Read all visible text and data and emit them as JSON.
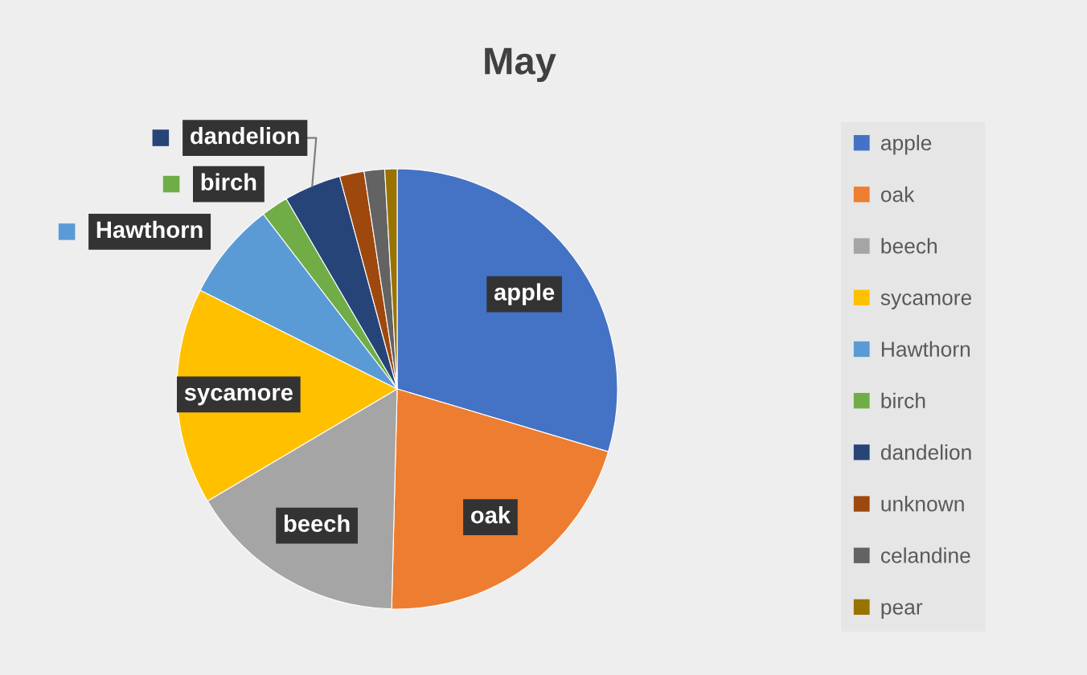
{
  "chart_data": {
    "type": "pie",
    "title": "May",
    "categories": [
      "apple",
      "oak",
      "beech",
      "sycamore",
      "Hawthorn",
      "birch",
      "dandelion",
      "unknown",
      "celandine",
      "pear"
    ],
    "values": [
      29.6,
      20.8,
      16.1,
      15.9,
      7.2,
      2.0,
      4.2,
      1.8,
      1.5,
      0.9
    ],
    "colors": [
      "#4472c4",
      "#ed7d31",
      "#a5a5a5",
      "#ffc000",
      "#5b9bd5",
      "#70ad47",
      "#264478",
      "#9e480e",
      "#636363",
      "#997300"
    ],
    "value_labels": [
      "apple",
      "oak",
      "beech",
      "sycamore",
      "Hawthorn",
      "birch",
      "dandelion",
      null,
      null,
      null
    ],
    "legend": "right"
  }
}
